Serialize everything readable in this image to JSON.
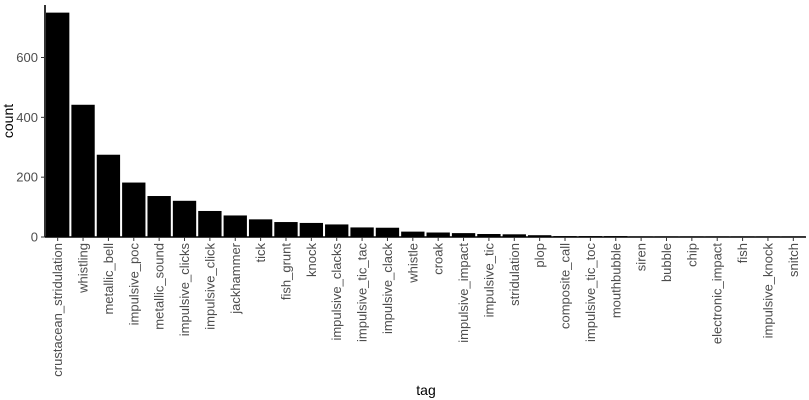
{
  "chart_data": {
    "type": "bar",
    "xlabel": "tag",
    "ylabel": "count",
    "ylim": [
      0,
      760
    ],
    "yticks": [
      0,
      200,
      400,
      600
    ],
    "grid": false,
    "bar_color": "#000000",
    "categories": [
      "crustacean_stridulation",
      "whistling",
      "metallic_bell",
      "impulsive_poc",
      "metallic_sound",
      "impulsive_clicks",
      "impulsive_click",
      "jackhammer",
      "tick",
      "fish_grunt",
      "knock",
      "impulsive_clacks",
      "impulsive_tic_tac",
      "impulsive_clack",
      "whistle",
      "croak",
      "impulsive_impact",
      "impulsive_tic",
      "stridulation",
      "plop",
      "composite_call",
      "impulsive_tic_toc",
      "mouthbubble",
      "siren",
      "bubble",
      "chip",
      "electronic_impact",
      "fish",
      "impulsive_knock",
      "snitch"
    ],
    "values": [
      750,
      442,
      275,
      182,
      137,
      121,
      87,
      72,
      59,
      50,
      47,
      42,
      32,
      31,
      18,
      15,
      13,
      10,
      9,
      6,
      3,
      3,
      3,
      2,
      2,
      2,
      2,
      2,
      2,
      2
    ]
  }
}
